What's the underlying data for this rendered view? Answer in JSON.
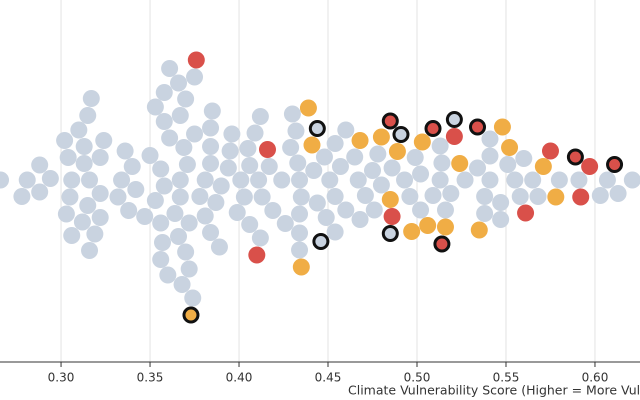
{
  "chart_data": {
    "type": "beeswarm",
    "x_label": "Climate Vulnerability Score (Higher = More Vulnerable)",
    "xlim": [
      0.2657,
      0.6253
    ],
    "xticks": [
      {
        "value": 0.3,
        "label": "0.30"
      },
      {
        "value": 0.35,
        "label": "0.35"
      },
      {
        "value": 0.4,
        "label": "0.40"
      },
      {
        "value": 0.45,
        "label": "0.45"
      },
      {
        "value": 0.5,
        "label": "0.50"
      },
      {
        "value": 0.55,
        "label": "0.55"
      },
      {
        "value": 0.6,
        "label": "0.60"
      }
    ],
    "grid": true,
    "series": [
      {
        "color": "#c9d3e0",
        "values": [
          0.266,
          0.281,
          0.278,
          0.288,
          0.294,
          0.288,
          0.306,
          0.316,
          0.305,
          0.313,
          0.322,
          0.304,
          0.315,
          0.303,
          0.313,
          0.302,
          0.312,
          0.322,
          0.31,
          0.319,
          0.306,
          0.315,
          0.316,
          0.317,
          0.322,
          0.324,
          0.334,
          0.332,
          0.34,
          0.336,
          0.338,
          0.342,
          0.367,
          0.367,
          0.371,
          0.358,
          0.381,
          0.356,
          0.369,
          0.378,
          0.353,
          0.364,
          0.372,
          0.384,
          0.35,
          0.361,
          0.375,
          0.356,
          0.366,
          0.387,
          0.347,
          0.358,
          0.357,
          0.384,
          0.353,
          0.367,
          0.381,
          0.356,
          0.37,
          0.384,
          0.358,
          0.37,
          0.384,
          0.36,
          0.372,
          0.385,
          0.366,
          0.368,
          0.375,
          0.374,
          0.361,
          0.411,
          0.413,
          0.401,
          0.394,
          0.406,
          0.39,
          0.403,
          0.395,
          0.405,
          0.399,
          0.389,
          0.406,
          0.396,
          0.409,
          0.412,
          0.412,
          0.417,
          0.434,
          0.435,
          0.433,
          0.424,
          0.434,
          0.429,
          0.419,
          0.432,
          0.442,
          0.426,
          0.451,
          0.434,
          0.444,
          0.43,
          0.434,
          0.448,
          0.454,
          0.449,
          0.454,
          0.457,
          0.454,
          0.46,
          0.467,
          0.46,
          0.465,
          0.471,
          0.475,
          0.468,
          0.48,
          0.478,
          0.493,
          0.476,
          0.486,
          0.496,
          0.502,
          0.513,
          0.519,
          0.499,
          0.514,
          0.502,
          0.516,
          0.509,
          0.513,
          0.541,
          0.538,
          0.534,
          0.541,
          0.538,
          0.541,
          0.527,
          0.547,
          0.547,
          0.555,
          0.558,
          0.551,
          0.565,
          0.56,
          0.568,
          0.58,
          0.591,
          0.607,
          0.613,
          0.621,
          0.603
        ]
      },
      {
        "color": "#f0ad45",
        "values": [
          0.441,
          0.439,
          0.435,
          0.468,
          0.48,
          0.485,
          0.489,
          0.506,
          0.503,
          0.497,
          0.524,
          0.516,
          0.535,
          0.548,
          0.552,
          0.571,
          0.578
        ]
      },
      {
        "color": "#d9504a",
        "values": [
          0.376,
          0.41,
          0.416,
          0.486,
          0.521,
          0.561,
          0.575,
          0.592,
          0.597
        ]
      },
      {
        "color": "#c9d3e0",
        "outline": "#111111",
        "values": [
          0.444,
          0.485,
          0.491,
          0.521,
          0.446
        ]
      },
      {
        "color": "#f0ad45",
        "outline": "#111111",
        "values": [
          0.373
        ]
      },
      {
        "color": "#d9504a",
        "outline": "#111111",
        "values": [
          0.485,
          0.514,
          0.509,
          0.534,
          0.589,
          0.611
        ]
      }
    ]
  }
}
